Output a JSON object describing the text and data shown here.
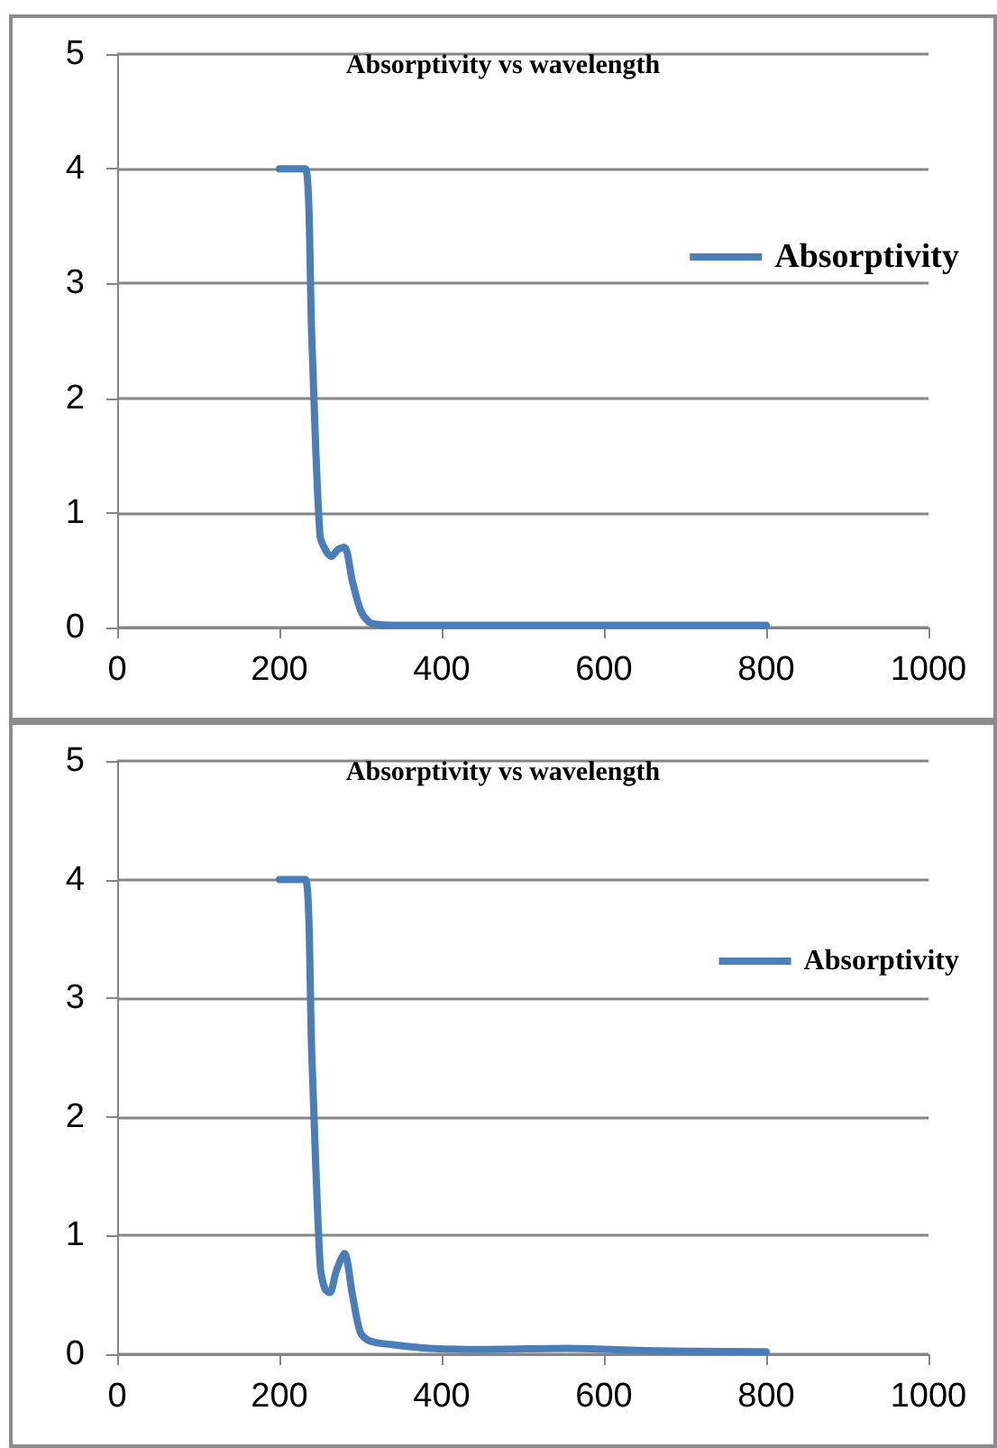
{
  "chart_data": [
    {
      "type": "line",
      "title": "Absorptivity vs wavelength",
      "xlim": [
        0,
        1000
      ],
      "xticks": [
        0,
        200,
        400,
        600,
        800,
        1000
      ],
      "ylim": [
        0,
        5
      ],
      "yticks": [
        0,
        1,
        2,
        3,
        4,
        5
      ],
      "grid": "y",
      "legend": "right",
      "marker": "none",
      "line_style": "solid",
      "series": [
        {
          "name": "Absorptivity",
          "color": "#4a7ebb",
          "x": [
            200,
            220,
            232,
            240,
            250,
            258,
            264,
            272,
            280,
            290,
            300,
            310,
            318,
            340,
            400,
            500,
            600,
            700,
            800
          ],
          "values": [
            4,
            4,
            4,
            2.5,
            0.8,
            0.66,
            0.62,
            0.68,
            0.7,
            0.4,
            0.15,
            0.05,
            0.03,
            0.02,
            0.02,
            0.02,
            0.02,
            0.02,
            0.02
          ]
        }
      ]
    },
    {
      "type": "line",
      "title": "Absorptivity vs wavelength",
      "xlim": [
        0,
        1000
      ],
      "xticks": [
        0,
        200,
        400,
        600,
        800,
        1000
      ],
      "ylim": [
        0,
        5
      ],
      "yticks": [
        0,
        1,
        2,
        3,
        4,
        5
      ],
      "grid": "y",
      "legend": "right",
      "marker": "none",
      "line_style": "solid",
      "series": [
        {
          "name": "Absorptivity",
          "color": "#4a7ebb",
          "x": [
            200,
            220,
            232,
            240,
            250,
            256,
            262,
            270,
            280,
            290,
            300,
            312,
            340,
            385,
            450,
            555,
            650,
            800
          ],
          "values": [
            4,
            4,
            4,
            2.5,
            0.77,
            0.55,
            0.52,
            0.7,
            0.85,
            0.5,
            0.18,
            0.11,
            0.08,
            0.05,
            0.04,
            0.05,
            0.03,
            0.02
          ]
        }
      ]
    }
  ]
}
